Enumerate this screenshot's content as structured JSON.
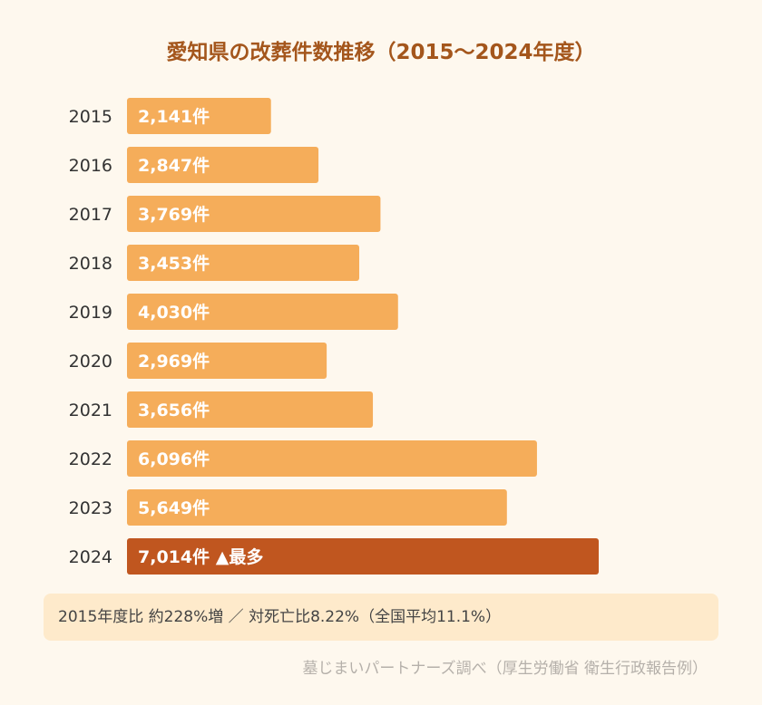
{
  "chart_data": {
    "type": "bar",
    "orientation": "horizontal",
    "title": "愛知県の改葬件数推移（2015〜2024年度）",
    "categories": [
      "2015",
      "2016",
      "2017",
      "2018",
      "2019",
      "2020",
      "2021",
      "2022",
      "2023",
      "2024"
    ],
    "values": [
      2141,
      2847,
      3769,
      3453,
      4030,
      2969,
      3656,
      6096,
      5649,
      7014
    ],
    "data_labels": [
      "2,141件",
      "2,847件",
      "3,769件",
      "3,453件",
      "4,030件",
      "2,969件",
      "3,656件",
      "6,096件",
      "5,649件",
      "7,014件 ▲最多"
    ],
    "highlight_index": 9,
    "xlim": [
      0,
      7014
    ],
    "grid": false,
    "colors": {
      "bar": "#f5ad5a",
      "highlight": "#c0561f",
      "title": "#a4561c",
      "label": "#ffffff",
      "category": "#333333"
    }
  },
  "note": "2015年度比 約228%増 ／ 対死亡比8.22%（全国平均11.1%）",
  "source": "墓じまいパートナーズ調べ（厚生労働省 衛生行政報告例）"
}
